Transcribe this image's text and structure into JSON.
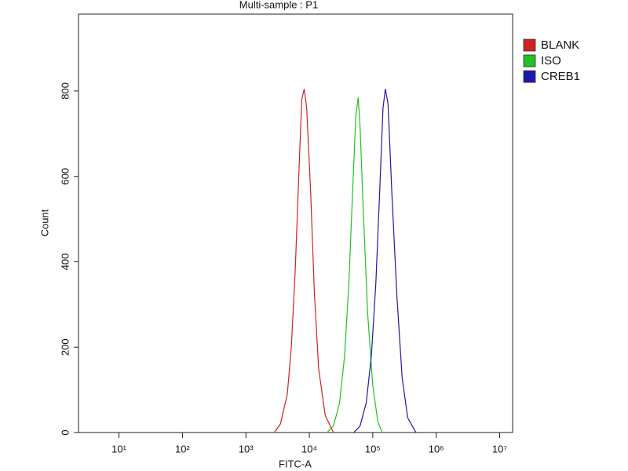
{
  "chart_data": {
    "type": "line",
    "title": "Multi-sample : P1",
    "x_label": "FITC-A",
    "y_label": "Count",
    "x_scale": "log",
    "xlim": [
      2.3,
      16000000
    ],
    "ylim": [
      0,
      980
    ],
    "xticks": [
      {
        "value": 10,
        "label": "10¹"
      },
      {
        "value": 100,
        "label": "10²"
      },
      {
        "value": 1000,
        "label": "10³"
      },
      {
        "value": 10000,
        "label": "10⁴"
      },
      {
        "value": 100000,
        "label": "10⁵"
      },
      {
        "value": 1000000,
        "label": "10⁶"
      },
      {
        "value": 10000000,
        "label": "10⁷"
      }
    ],
    "yticks": [
      0,
      200,
      400,
      600,
      800
    ],
    "legend": "top-right",
    "series": [
      {
        "name": "BLANK",
        "color": "#d42020",
        "x": [
          2800,
          3500,
          4500,
          5200,
          6000,
          6900,
          7600,
          8300,
          9100,
          10500,
          12000,
          14000,
          17800,
          24000
        ],
        "values": [
          0,
          20,
          90,
          200,
          380,
          620,
          780,
          805,
          760,
          560,
          330,
          150,
          40,
          0
        ]
      },
      {
        "name": "ISO",
        "color": "#22c022",
        "x": [
          19000,
          24000,
          30000,
          36000,
          42000,
          48000,
          54000,
          59000,
          63000,
          71000,
          83000,
          100000,
          120000,
          141000
        ],
        "values": [
          0,
          15,
          70,
          180,
          350,
          560,
          740,
          785,
          720,
          520,
          280,
          110,
          25,
          0
        ]
      },
      {
        "name": "CREB1",
        "color": "#1a1aa8",
        "x": [
          50000,
          63000,
          79000,
          95000,
          112000,
          129000,
          145000,
          158000,
          174000,
          200000,
          240000,
          290000,
          355000,
          480000
        ],
        "values": [
          0,
          15,
          70,
          180,
          350,
          570,
          760,
          805,
          770,
          560,
          320,
          130,
          35,
          0
        ]
      }
    ]
  }
}
